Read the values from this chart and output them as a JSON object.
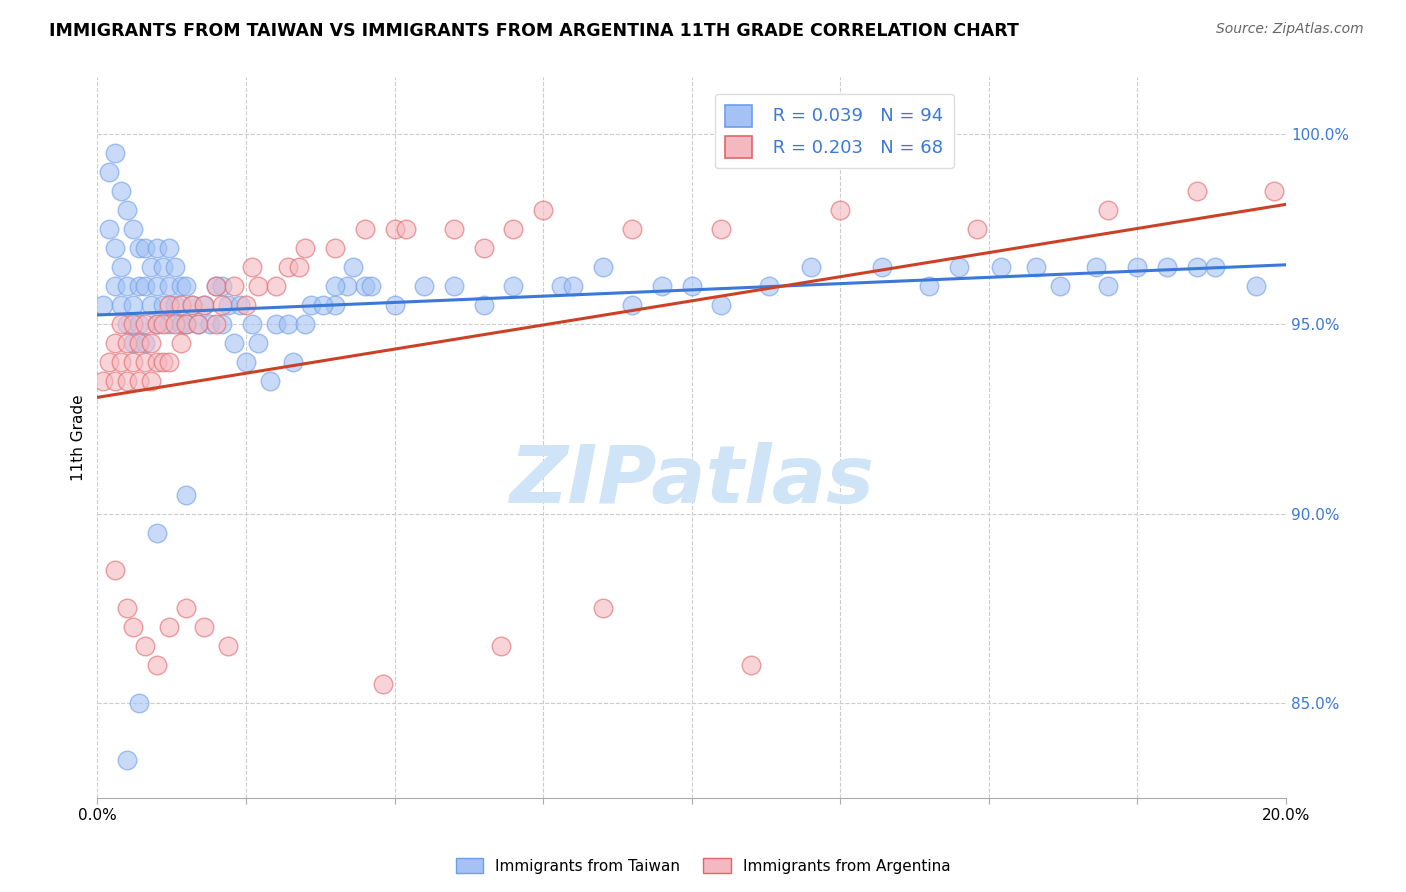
{
  "title": "IMMIGRANTS FROM TAIWAN VS IMMIGRANTS FROM ARGENTINA 11TH GRADE CORRELATION CHART",
  "source": "Source: ZipAtlas.com",
  "ylabel": "11th Grade",
  "y_ticks": [
    85.0,
    90.0,
    95.0,
    100.0
  ],
  "y_tick_labels": [
    "85.0%",
    "90.0%",
    "95.0%",
    "100.0%"
  ],
  "x_range": [
    0.0,
    20.0
  ],
  "y_range": [
    82.5,
    101.5
  ],
  "taiwan_R": 0.039,
  "taiwan_N": 94,
  "argentina_R": 0.203,
  "argentina_N": 68,
  "taiwan_color": "#a4c2f4",
  "argentina_color": "#f4b8c1",
  "taiwan_edge_color": "#6d9eeb",
  "argentina_edge_color": "#e06666",
  "taiwan_line_color": "#3c78d8",
  "argentina_line_color": "#cc4125",
  "watermark_color": "#d0e4f7",
  "taiwan_scatter_x": [
    0.1,
    0.2,
    0.2,
    0.3,
    0.3,
    0.3,
    0.4,
    0.4,
    0.4,
    0.5,
    0.5,
    0.5,
    0.6,
    0.6,
    0.6,
    0.7,
    0.7,
    0.7,
    0.8,
    0.8,
    0.8,
    0.9,
    0.9,
    1.0,
    1.0,
    1.0,
    1.1,
    1.1,
    1.2,
    1.2,
    1.2,
    1.3,
    1.3,
    1.4,
    1.4,
    1.5,
    1.5,
    1.6,
    1.7,
    1.8,
    1.9,
    2.0,
    2.1,
    2.1,
    2.2,
    2.3,
    2.4,
    2.5,
    2.6,
    2.7,
    2.9,
    3.0,
    3.2,
    3.3,
    3.5,
    3.6,
    4.0,
    4.2,
    4.5,
    4.6,
    5.5,
    6.5,
    7.8,
    8.0,
    9.5,
    10.5,
    11.3,
    13.2,
    14.0,
    15.2,
    16.8,
    17.0,
    17.5,
    18.5,
    3.8,
    4.0,
    4.3,
    5.0,
    6.0,
    7.0,
    8.5,
    9.0,
    10.0,
    12.0,
    14.5,
    15.8,
    16.2,
    18.0,
    18.8,
    19.5,
    0.5,
    0.7,
    1.0,
    1.5
  ],
  "taiwan_scatter_y": [
    95.5,
    97.5,
    99.0,
    96.0,
    97.0,
    99.5,
    95.5,
    96.5,
    98.5,
    95.0,
    96.0,
    98.0,
    94.5,
    95.5,
    97.5,
    95.0,
    96.0,
    97.0,
    94.5,
    96.0,
    97.0,
    95.5,
    96.5,
    95.0,
    96.0,
    97.0,
    95.5,
    96.5,
    95.0,
    96.0,
    97.0,
    95.5,
    96.5,
    95.0,
    96.0,
    95.0,
    96.0,
    95.5,
    95.0,
    95.5,
    95.0,
    96.0,
    95.0,
    96.0,
    95.5,
    94.5,
    95.5,
    94.0,
    95.0,
    94.5,
    93.5,
    95.0,
    95.0,
    94.0,
    95.0,
    95.5,
    95.5,
    96.0,
    96.0,
    96.0,
    96.0,
    95.5,
    96.0,
    96.0,
    96.0,
    95.5,
    96.0,
    96.5,
    96.0,
    96.5,
    96.5,
    96.0,
    96.5,
    96.5,
    95.5,
    96.0,
    96.5,
    95.5,
    96.0,
    96.0,
    96.5,
    95.5,
    96.0,
    96.5,
    96.5,
    96.5,
    96.0,
    96.5,
    96.5,
    96.0,
    83.5,
    85.0,
    89.5,
    90.5
  ],
  "argentina_scatter_x": [
    0.1,
    0.2,
    0.3,
    0.3,
    0.4,
    0.4,
    0.5,
    0.5,
    0.6,
    0.6,
    0.7,
    0.7,
    0.8,
    0.8,
    0.9,
    0.9,
    1.0,
    1.0,
    1.1,
    1.1,
    1.2,
    1.2,
    1.3,
    1.4,
    1.4,
    1.5,
    1.6,
    1.7,
    1.8,
    2.0,
    2.0,
    2.1,
    2.3,
    2.5,
    2.6,
    2.7,
    3.0,
    3.2,
    3.4,
    3.5,
    4.0,
    4.5,
    5.0,
    5.2,
    6.0,
    6.5,
    7.0,
    7.5,
    9.0,
    10.5,
    12.5,
    14.8,
    17.0,
    18.5,
    19.8,
    0.3,
    0.5,
    0.6,
    0.8,
    1.0,
    1.2,
    1.5,
    1.8,
    2.2,
    4.8,
    6.8,
    8.5,
    11.0
  ],
  "argentina_scatter_y": [
    93.5,
    94.0,
    93.5,
    94.5,
    94.0,
    95.0,
    93.5,
    94.5,
    94.0,
    95.0,
    93.5,
    94.5,
    94.0,
    95.0,
    93.5,
    94.5,
    94.0,
    95.0,
    94.0,
    95.0,
    94.0,
    95.5,
    95.0,
    94.5,
    95.5,
    95.0,
    95.5,
    95.0,
    95.5,
    95.0,
    96.0,
    95.5,
    96.0,
    95.5,
    96.5,
    96.0,
    96.0,
    96.5,
    96.5,
    97.0,
    97.0,
    97.5,
    97.5,
    97.5,
    97.5,
    97.0,
    97.5,
    98.0,
    97.5,
    97.5,
    98.0,
    97.5,
    98.0,
    98.5,
    98.5,
    88.5,
    87.5,
    87.0,
    86.5,
    86.0,
    87.0,
    87.5,
    87.0,
    86.5,
    85.5,
    86.5,
    87.5,
    86.0
  ]
}
